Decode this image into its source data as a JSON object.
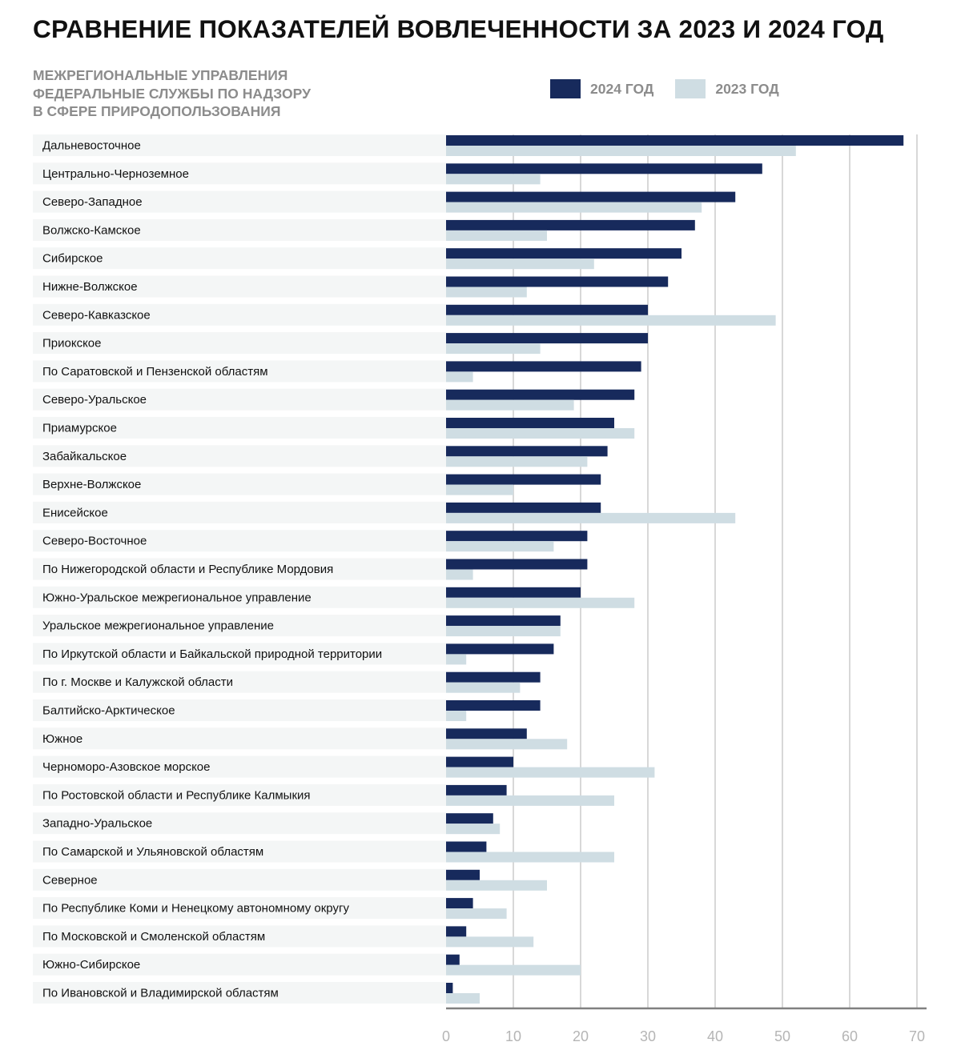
{
  "chart_data": {
    "type": "bar",
    "orientation": "horizontal",
    "title": "СРАВНЕНИЕ ПОКАЗАТЕЛЕЙ ВОВЛЕЧЕННОСТИ ЗА 2023 И 2024 ГОД",
    "subtitle": [
      "МЕЖРЕГИОНАЛЬНЫЕ УПРАВЛЕНИЯ",
      "ФЕДЕРАЛЬНЫЕ СЛУЖБЫ ПО НАДЗОРУ",
      "В СФЕРЕ ПРИРОДОПОЛЬЗОВАНИЯ"
    ],
    "xlabel": "",
    "ylabel": "",
    "xlim": [
      0,
      70
    ],
    "xticks": [
      0,
      10,
      20,
      30,
      40,
      50,
      60,
      70
    ],
    "grid": true,
    "legend_position": "top-right",
    "categories": [
      "Дальневосточное",
      "Центрально-Черноземное",
      "Северо-Западное",
      "Волжско-Камское",
      "Сибирское",
      "Нижне-Волжское",
      "Северо-Кавказское",
      "Приокское",
      "По Саратовской и Пензенской областям",
      "Северо-Уральское",
      "Приамурское",
      "Забайкальское",
      "Верхне-Волжское",
      "Енисейское",
      "Северо-Восточное",
      "По Нижегородской области и Республике Мордовия",
      "Южно-Уральское межрегиональное управление",
      "Уральское межрегиональное управление",
      "По Иркутской области и Байкальской природной территории",
      "По г. Москве и Калужской области",
      "Балтийско-Арктическое",
      "Южное",
      "Черноморо-Азовское морское",
      "По Ростовской области и Республике Калмыкия",
      "Западно-Уральское",
      "По Самарской и Ульяновской областям",
      "Северное",
      "По Республике Коми  и Ненецкому автономному округу",
      "По Московской и Смоленской областям",
      "Южно-Сибирское",
      "По Ивановской и Владимирской областям"
    ],
    "series": [
      {
        "name": "2024 ГОД",
        "color": "#172a5c",
        "values": [
          68,
          47,
          43,
          37,
          35,
          33,
          30,
          30,
          29,
          28,
          25,
          24,
          23,
          23,
          21,
          21,
          20,
          17,
          16,
          14,
          14,
          12,
          10,
          9,
          7,
          6,
          5,
          4,
          3,
          2,
          1
        ]
      },
      {
        "name": "2023 ГОД",
        "color": "#cfdde3",
        "values": [
          52,
          14,
          38,
          15,
          22,
          12,
          49,
          14,
          4,
          19,
          28,
          21,
          10,
          43,
          16,
          4,
          28,
          17,
          3,
          11,
          3,
          18,
          31,
          25,
          8,
          25,
          15,
          9,
          13,
          20,
          5
        ]
      }
    ]
  },
  "colors": {
    "row_band": "#f4f6f6",
    "grid": "#cccccc",
    "axis": "#808080",
    "title": "#111111",
    "muted": "#8c8c8c"
  }
}
